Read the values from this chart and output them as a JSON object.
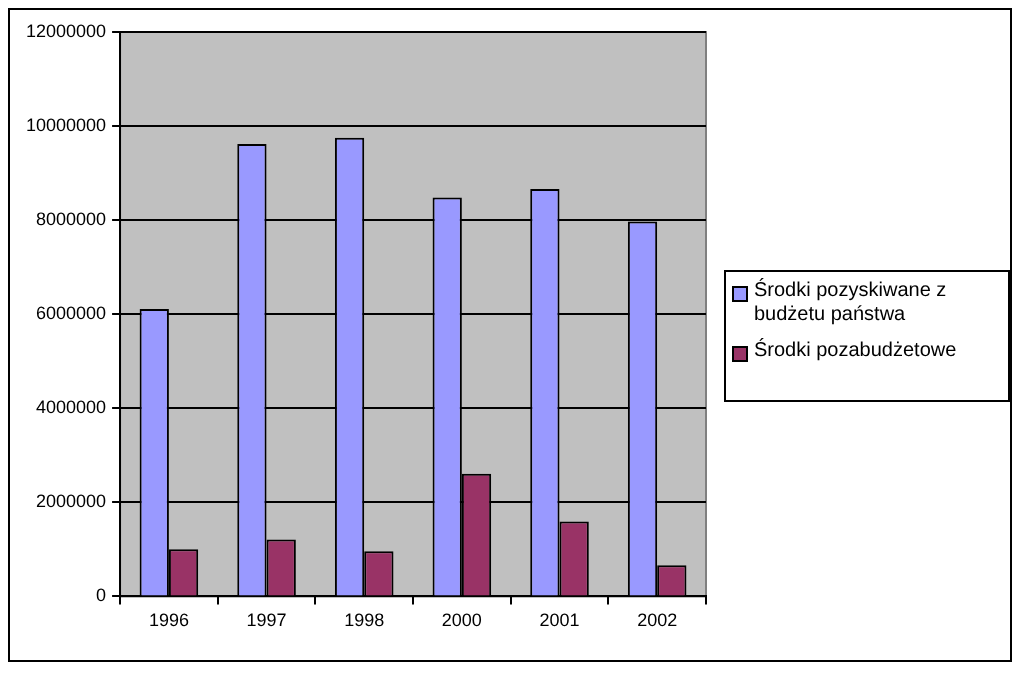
{
  "chart_data": {
    "type": "bar",
    "categories": [
      "1996",
      "1997",
      "1998",
      "2000",
      "2001",
      "2002"
    ],
    "series": [
      {
        "name": "Środki pozyskiwane z budżetu państwa",
        "color": "#9999ff",
        "values": [
          6110000,
          9620000,
          9750000,
          8480000,
          8660000,
          7970000
        ]
      },
      {
        "name": "Środki pozabudżetowe",
        "color": "#993366",
        "values": [
          1000000,
          1210000,
          960000,
          2610000,
          1590000,
          660000
        ]
      }
    ],
    "ylim": [
      0,
      12000000
    ],
    "yticks": [
      0,
      2000000,
      4000000,
      6000000,
      8000000,
      10000000,
      12000000
    ],
    "grid": "y",
    "legend": "right"
  }
}
